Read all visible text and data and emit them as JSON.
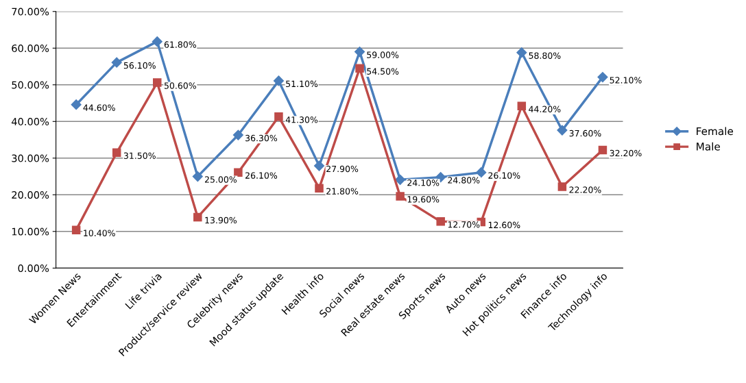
{
  "chart_data": {
    "type": "line",
    "categories": [
      "Women News",
      "Entertainment",
      "Life trivia",
      "Product/service review",
      "Celebrity news",
      "Mood status update",
      "Health info",
      "Social news",
      "Real estate news",
      "Sports news",
      "Auto news",
      "Hot politics news",
      "Finance info",
      "Technology info"
    ],
    "series": [
      {
        "name": "Female",
        "color": "#4a7ebb",
        "marker": "diamond",
        "values": [
          44.6,
          56.1,
          61.8,
          25.0,
          36.3,
          51.1,
          27.9,
          59.0,
          24.1,
          24.8,
          26.1,
          58.8,
          37.6,
          52.1
        ],
        "value_labels": [
          "44.60%",
          "56.10%",
          "61.80%",
          "25.00%",
          "36.30%",
          "51.10%",
          "27.90%",
          "59.00%",
          "24.10%",
          "24.80%",
          "26.10%",
          "58.80%",
          "37.60%",
          "52.10%"
        ]
      },
      {
        "name": "Male",
        "color": "#be4b48",
        "marker": "square",
        "values": [
          10.4,
          31.5,
          50.6,
          13.9,
          26.1,
          41.3,
          21.8,
          54.5,
          19.6,
          12.7,
          12.6,
          44.2,
          22.2,
          32.2
        ],
        "value_labels": [
          "10.40%",
          "31.50%",
          "50.60%",
          "13.90%",
          "26.10%",
          "41.30%",
          "21.80%",
          "54.50%",
          "19.60%",
          "12.70%",
          "12.60%",
          "44.20%",
          "22.20%",
          "32.20%"
        ]
      }
    ],
    "ylim": [
      0,
      70
    ],
    "yticks": [
      {
        "value": 0,
        "label": "0.00%"
      },
      {
        "value": 10,
        "label": "10.00%"
      },
      {
        "value": 20,
        "label": "20.00%"
      },
      {
        "value": 30,
        "label": "30.00%"
      },
      {
        "value": 40,
        "label": "40.00%"
      },
      {
        "value": 50,
        "label": "50.00%"
      },
      {
        "value": 60,
        "label": "60.00%"
      },
      {
        "value": 70,
        "label": "70.00%"
      }
    ],
    "grid": "y",
    "legend": "right",
    "line_style": "solid"
  }
}
